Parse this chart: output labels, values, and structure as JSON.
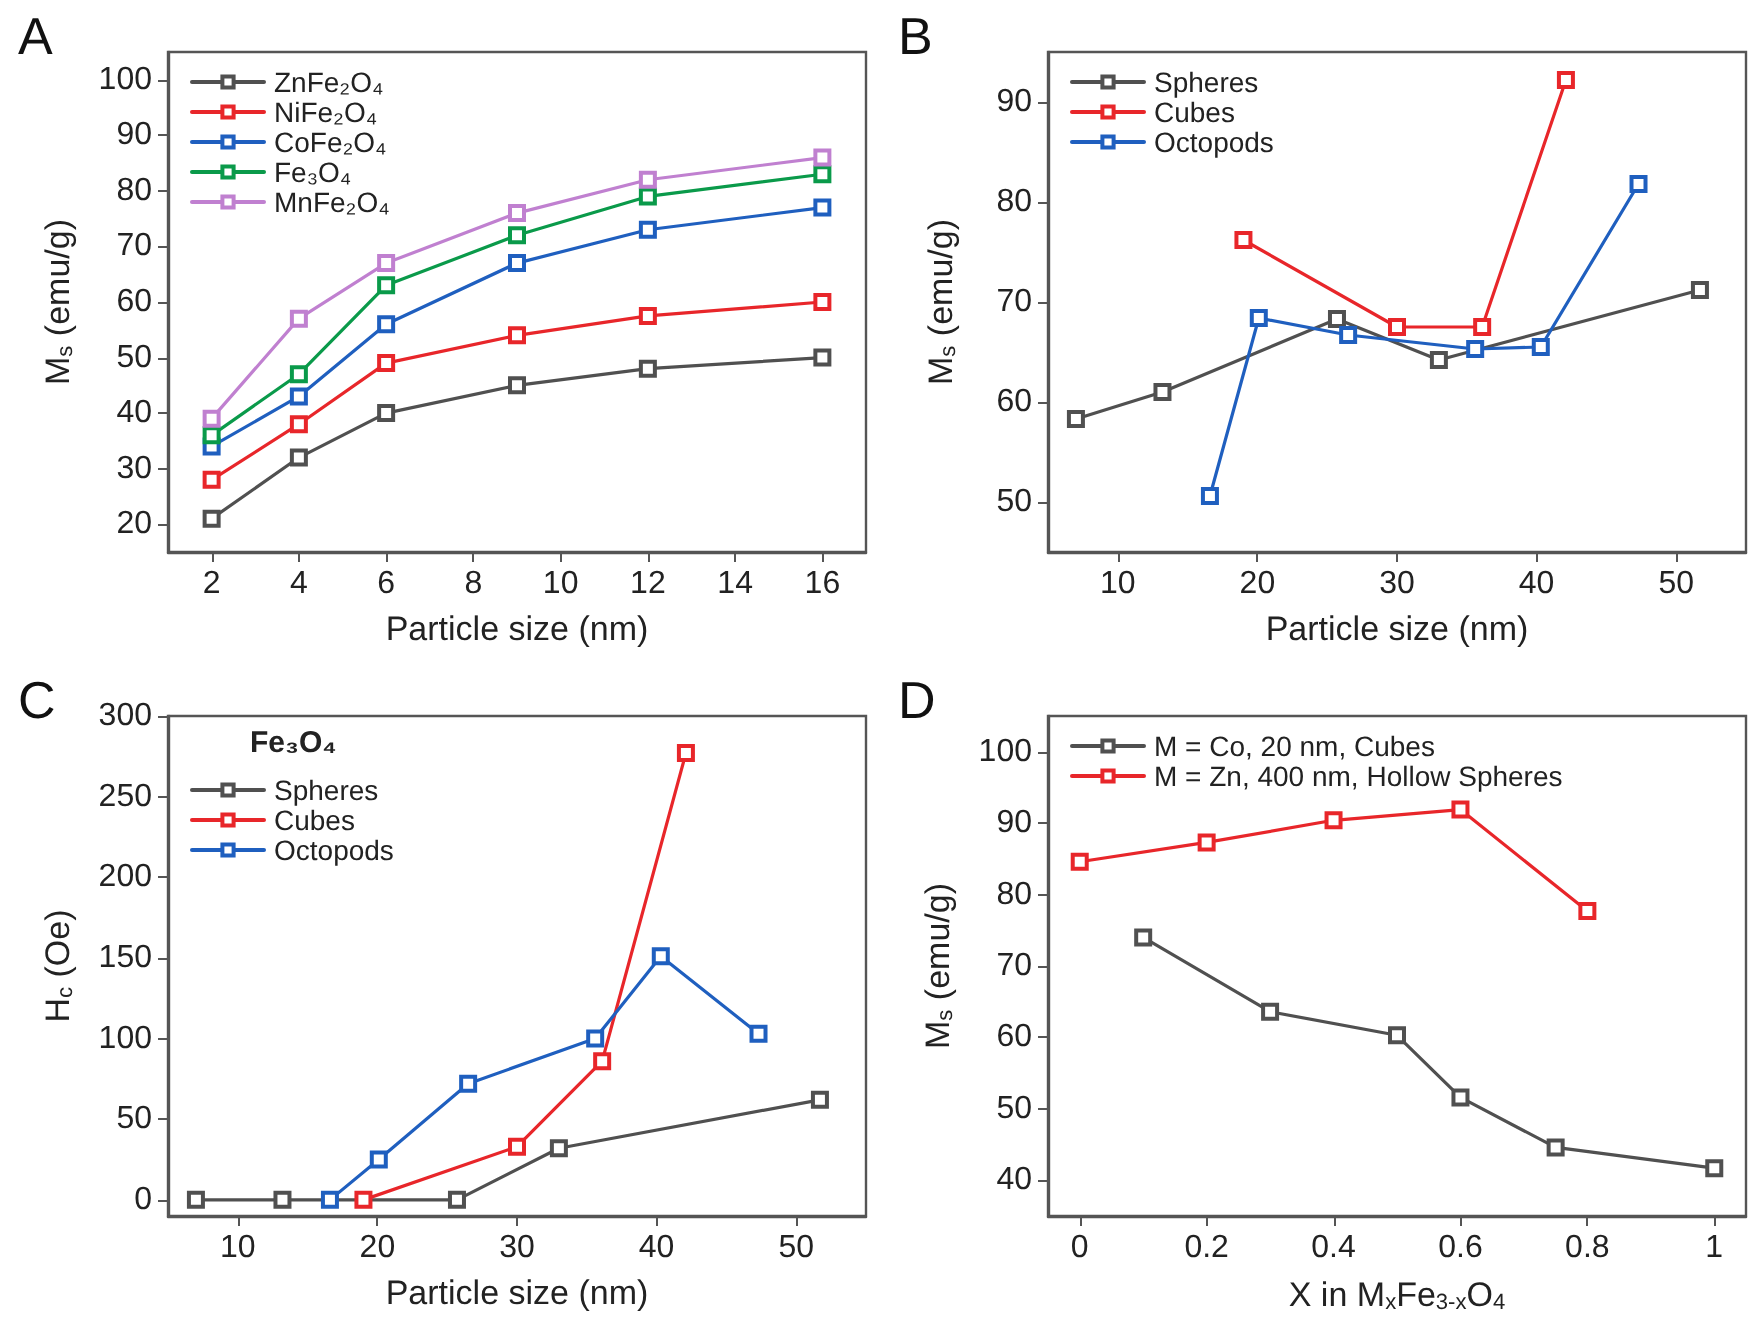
{
  "chart_data": [
    {
      "type": "line",
      "title": "A",
      "xlabel": "Particle size (nm)",
      "ylabel": "M$_{s}$ (emu/g)",
      "x": [
        2,
        4,
        6,
        9,
        12,
        16
      ],
      "xlim": [
        1,
        17
      ],
      "xticks": [
        2,
        4,
        6,
        8,
        10,
        12,
        14,
        16
      ],
      "ylim": [
        15,
        105
      ],
      "yticks": [
        20,
        30,
        40,
        50,
        60,
        70,
        80,
        90,
        100
      ],
      "marker": "square",
      "line_style": "solid",
      "legend": "top left",
      "grid": false,
      "series": [
        {
          "name": "ZnFe₂O₄",
          "color": "#505050",
          "values": [
            21,
            32,
            40,
            45,
            48,
            50
          ]
        },
        {
          "name": "NiFe₂O₄",
          "color": "#e8262a",
          "values": [
            28,
            38,
            49,
            54,
            57.5,
            60
          ]
        },
        {
          "name": "CoFe₂O₄",
          "color": "#1f5fbf",
          "values": [
            34,
            43,
            56,
            67,
            73,
            77
          ]
        },
        {
          "name": "Fe₃O₄",
          "color": "#0a9a4a",
          "values": [
            36,
            47,
            63,
            72,
            79,
            83
          ]
        },
        {
          "name": "MnFe₂O₄",
          "color": "#c080d0",
          "values": [
            39,
            57,
            67,
            76,
            82,
            86
          ]
        }
      ]
    },
    {
      "type": "line",
      "title": "B",
      "xlabel": "Particle size (nm)",
      "ylabel": "M$_{s}$ (emu/g)",
      "xlim": [
        5,
        55
      ],
      "xticks": [
        10,
        20,
        30,
        40,
        50
      ],
      "ylim": [
        45,
        95
      ],
      "yticks": [
        50,
        60,
        70,
        80,
        90
      ],
      "marker": "square",
      "line_style": "solid",
      "legend": "top left",
      "grid": false,
      "series": [
        {
          "name": "Spheres",
          "color": "#505050",
          "x": [
            7,
            13.2,
            25.7,
            33,
            51.7
          ],
          "values": [
            58.3,
            61,
            68.3,
            64.2,
            71.2
          ]
        },
        {
          "name": "Cubes",
          "color": "#e8262a",
          "x": [
            19,
            30,
            36.1,
            42.1
          ],
          "values": [
            76.2,
            67.5,
            67.5,
            92.2
          ]
        },
        {
          "name": "Octopods",
          "color": "#1f5fbf",
          "x": [
            16.6,
            20.1,
            26.5,
            35.6,
            40.3,
            47.3
          ],
          "values": [
            50.6,
            68.4,
            66.7,
            65.3,
            65.5,
            81.8
          ]
        }
      ]
    },
    {
      "type": "line",
      "title": "C",
      "xlabel": "Particle size (nm)",
      "ylabel": "H$_{c}$ (Oe)",
      "legend_title": "Fe₃O₄",
      "xlim": [
        5,
        55
      ],
      "xticks": [
        10,
        20,
        30,
        40,
        50
      ],
      "ylim": [
        -10,
        300
      ],
      "yticks": [
        0,
        50,
        100,
        150,
        200,
        250,
        300
      ],
      "marker": "square",
      "line_style": "solid",
      "legend": "top left",
      "grid": false,
      "series": [
        {
          "name": "Spheres",
          "color": "#505050",
          "x": [
            7,
            13.2,
            25.7,
            33,
            51.7
          ],
          "values": [
            0,
            0,
            0,
            32,
            62
          ]
        },
        {
          "name": "Cubes",
          "color": "#e8262a",
          "x": [
            19,
            30,
            36.1,
            42.1
          ],
          "values": [
            0,
            33,
            86,
            277
          ]
        },
        {
          "name": "Octopods",
          "color": "#1f5fbf",
          "x": [
            16.6,
            20.1,
            26.5,
            35.6,
            40.3,
            47.3
          ],
          "values": [
            0,
            25,
            72,
            100,
            151,
            103
          ]
        }
      ]
    },
    {
      "type": "line",
      "title": "D",
      "xlabel": "X in M$_{x}$Fe$_{3-x}$O$_{4}$",
      "ylabel": "M$_{s}$ (emu/g)",
      "xlim": [
        -0.05,
        1.05
      ],
      "xticks": [
        0,
        0.2,
        0.4,
        0.6,
        0.8,
        1
      ],
      "ylim": [
        35,
        105
      ],
      "yticks": [
        40,
        50,
        60,
        70,
        80,
        90,
        100
      ],
      "marker": "square",
      "line_style": "solid",
      "legend": "top left",
      "grid": false,
      "series": [
        {
          "name": "M = Co, 20 nm, Cubes",
          "color": "#505050",
          "x": [
            0.1,
            0.3,
            0.5,
            0.6,
            0.75,
            1
          ],
          "values": [
            74,
            63.6,
            60.3,
            51.6,
            44.6,
            41.7
          ]
        },
        {
          "name": "M = Zn, 400 nm, Hollow Spheres",
          "color": "#e8262a",
          "x": [
            0,
            0.2,
            0.4,
            0.6,
            0.8
          ],
          "values": [
            84.6,
            87.3,
            90.4,
            91.9,
            77.7
          ]
        }
      ]
    }
  ]
}
